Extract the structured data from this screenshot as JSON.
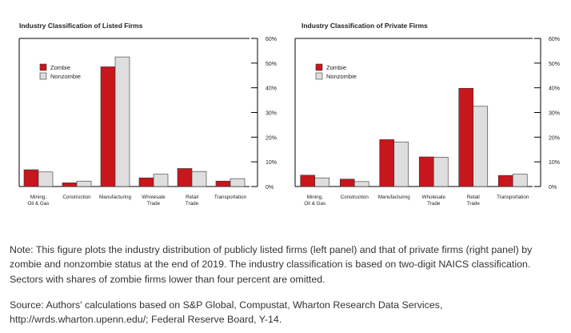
{
  "chart_data": [
    {
      "type": "bar",
      "title": "Industry Classification of Listed Firms",
      "categories": [
        [
          "Mining,",
          "Oil & Gas"
        ],
        [
          "Construction"
        ],
        [
          "Manufacturing"
        ],
        [
          "Wholesale",
          "Trade"
        ],
        [
          "Retail",
          "Trade"
        ],
        [
          "Transportation"
        ]
      ],
      "series": [
        {
          "name": "Zombie",
          "color": "#c8161d",
          "values": [
            6.8,
            1.5,
            48.5,
            3.5,
            7.3,
            2.2
          ]
        },
        {
          "name": "Nonzombie",
          "color": "#dedede",
          "values": [
            5.9,
            2.2,
            52.5,
            5.0,
            6.1,
            3.2
          ]
        }
      ],
      "ylim": [
        0,
        60
      ],
      "yticks": [
        "0%",
        "10%",
        "20%",
        "30%",
        "40%",
        "50%",
        "60%"
      ],
      "xlabel": "",
      "ylabel": "",
      "legend": "top-left"
    },
    {
      "type": "bar",
      "title": "Industry Classification of Private Firms",
      "categories": [
        [
          "Mining,",
          "Oil & Gas"
        ],
        [
          "Construction"
        ],
        [
          "Manufacturing"
        ],
        [
          "Wholesale",
          "Trade"
        ],
        [
          "Retail",
          "Trade"
        ],
        [
          "Transportation"
        ]
      ],
      "series": [
        {
          "name": "Zombie",
          "color": "#c8161d",
          "values": [
            4.6,
            3.0,
            19.0,
            12.0,
            39.8,
            4.5
          ]
        },
        {
          "name": "Nonzombie",
          "color": "#dedede",
          "values": [
            3.5,
            2.0,
            18.0,
            11.9,
            32.5,
            5.0
          ]
        }
      ],
      "ylim": [
        0,
        60
      ],
      "yticks": [
        "0%",
        "10%",
        "20%",
        "30%",
        "40%",
        "50%",
        "60%"
      ],
      "xlabel": "",
      "ylabel": "",
      "legend": "top-left"
    }
  ],
  "note": "Note: This figure plots the industry distribution of publicly listed firms (left panel) and that of private firms (right panel) by zombie and nonzombie status at the end of 2019. The industry classification is based on two-digit NAICS classification. Sectors with shares of zombie firms lower than four percent are omitted.",
  "source": "Source: Authors' calculations based on S&P Global, Compustat, Wharton Research Data Services, http://wrds.wharton.upenn.edu/; Federal Reserve Board, Y-14."
}
